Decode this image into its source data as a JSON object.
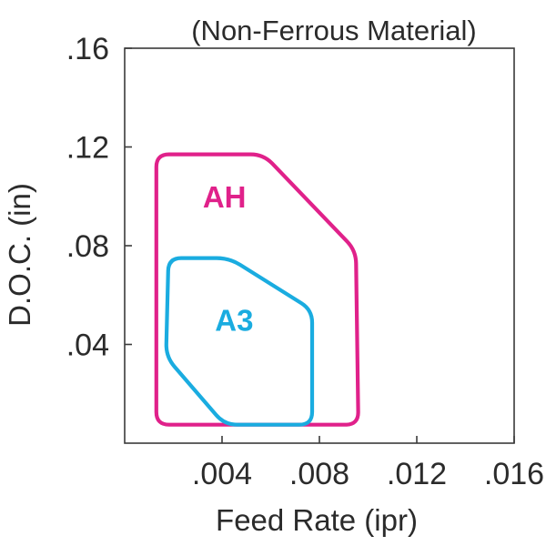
{
  "chart_data": {
    "type": "area",
    "title": "(Non-Ferrous Material)",
    "xlabel": "Feed Rate (ipr)",
    "ylabel": "D.O.C. (in)",
    "xlim": [
      0,
      0.016
    ],
    "ylim": [
      0,
      0.16
    ],
    "x_ticks": [
      0.004,
      0.008,
      0.012,
      0.016
    ],
    "x_tick_labels": [
      ".004",
      ".008",
      ".012",
      ".016"
    ],
    "y_ticks": [
      0.04,
      0.08,
      0.12,
      0.16
    ],
    "y_tick_labels": [
      ".04",
      ".08",
      ".12",
      ".16"
    ],
    "grid": false,
    "series": [
      {
        "name": "AH",
        "color": "#e0218a",
        "outline": [
          [
            0.0013,
            0.117
          ],
          [
            0.0057,
            0.117
          ],
          [
            0.0095,
            0.078
          ],
          [
            0.0096,
            0.0075
          ],
          [
            0.0013,
            0.0075
          ]
        ]
      },
      {
        "name": "A3",
        "color": "#1aace0",
        "outline": [
          [
            0.0018,
            0.075
          ],
          [
            0.0043,
            0.075
          ],
          [
            0.0077,
            0.054
          ],
          [
            0.0077,
            0.0075
          ],
          [
            0.0041,
            0.0075
          ],
          [
            0.0017,
            0.035
          ]
        ]
      }
    ]
  }
}
